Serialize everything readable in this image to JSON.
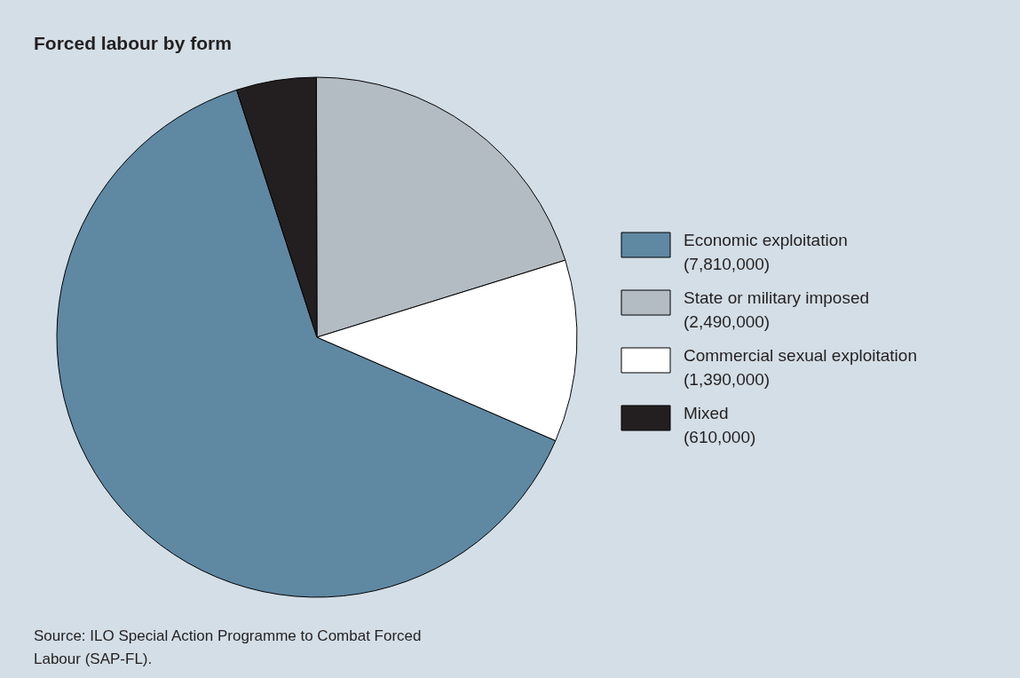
{
  "chart_data": {
    "type": "pie",
    "title": "Forced labour by form",
    "categories": [
      "Economic exploitation",
      "State or military imposed",
      "Commercial sexual exploitation",
      "Mixed"
    ],
    "values": [
      7810000,
      2490000,
      1390000,
      610000
    ],
    "value_labels": [
      "(7,810,000)",
      "(2,490,000)",
      "(1,390,000)",
      "(610,000)"
    ],
    "colors": [
      "#5f88a3",
      "#b4bcc3",
      "#ffffff",
      "#231f20"
    ],
    "legend": "right",
    "annotations": [
      "Source: ILO Special Action Programme to Combat Forced Labour (SAP-FL)."
    ]
  }
}
